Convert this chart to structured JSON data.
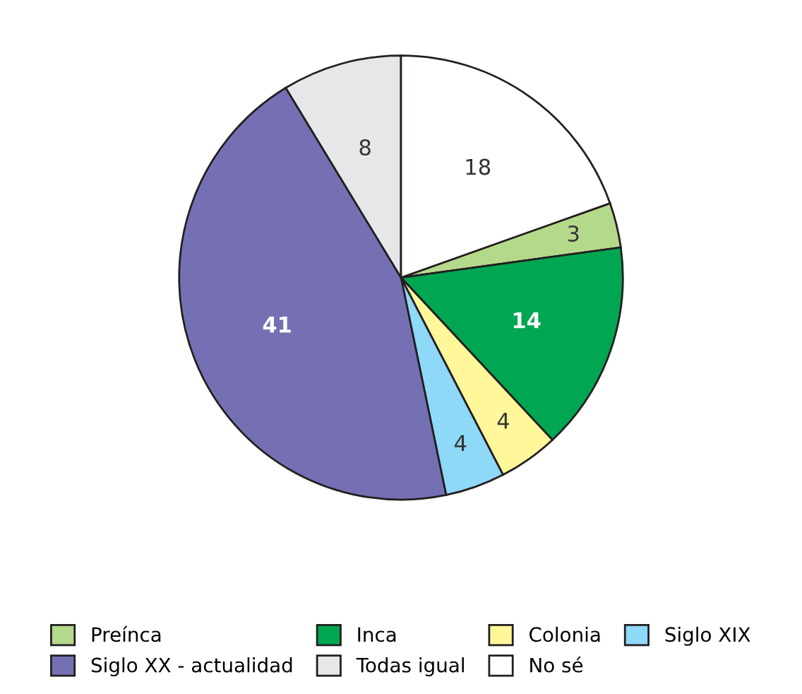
{
  "chart_data": {
    "type": "pie",
    "categories": [
      "Preínca",
      "Inca",
      "Colonia",
      "Siglo XIX",
      "Siglo XX - actualidad",
      "Todas igual",
      "No sé"
    ],
    "values": [
      3,
      14,
      4,
      4,
      41,
      8,
      18
    ],
    "colors": [
      "#b5d98a",
      "#00a651",
      "#fff799",
      "#8ed8f8",
      "#7570b3",
      "#e6e7e8",
      "#ffffff"
    ],
    "data_labels": true,
    "legend": "bottom"
  }
}
